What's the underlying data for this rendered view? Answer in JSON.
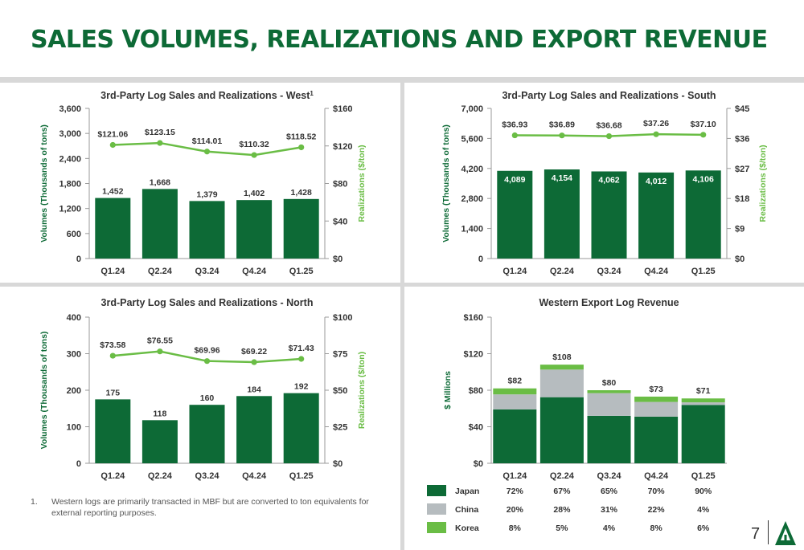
{
  "page": {
    "title": "SALES VOLUMES, REALIZATIONS AND EXPORT REVENUE",
    "footnote_number": "1.",
    "footnote_text": "Western logs are primarily transacted in MBF but are converted to ton equivalents for external reporting purposes.",
    "page_number": "7"
  },
  "colors": {
    "bar": "#0d6a36",
    "line": "#6abd45",
    "china": "#b6bcbf",
    "text_green": "#0d6a36",
    "text_dark": "#333333",
    "light_green": "#6abd45"
  },
  "chart_data": [
    {
      "type": "bar",
      "title": "3rd-Party Log Sales and Realizations - West",
      "title_sup": "1",
      "categories": [
        "Q1.24",
        "Q2.24",
        "Q3.24",
        "Q4.24",
        "Q1.25"
      ],
      "ylabel": "Volumes (Thousands of tons)",
      "y2label": "Realizations ($/ton)",
      "ylim": [
        0,
        3600
      ],
      "yticks": [
        "0",
        "600",
        "1,200",
        "1,800",
        "2,400",
        "3,000",
        "3,600"
      ],
      "y2lim": [
        0,
        160
      ],
      "y2ticks": [
        "$0",
        "$40",
        "$80",
        "$120",
        "$160"
      ],
      "bars": [
        1452,
        1668,
        1379,
        1402,
        1428
      ],
      "bar_labels": [
        "1,452",
        "1,668",
        "1,379",
        "1,402",
        "1,428"
      ],
      "line": [
        121.06,
        123.15,
        114.01,
        110.32,
        118.52
      ],
      "line_labels": [
        "$121.06",
        "$123.15",
        "$114.01",
        "$110.32",
        "$118.52"
      ]
    },
    {
      "type": "bar",
      "title": "3rd-Party Log Sales and Realizations - South",
      "categories": [
        "Q1.24",
        "Q2.24",
        "Q3.24",
        "Q4.24",
        "Q1.25"
      ],
      "ylabel": "Volumes (Thousands of tons)",
      "y2label": "Realizations ($/ton)",
      "ylim": [
        0,
        7000
      ],
      "yticks": [
        "0",
        "1,400",
        "2,800",
        "4,200",
        "5,600",
        "7,000"
      ],
      "y2lim": [
        0,
        45
      ],
      "y2ticks": [
        "$0",
        "$9",
        "$18",
        "$27",
        "$36",
        "$45"
      ],
      "bars": [
        4089,
        4154,
        4062,
        4012,
        4106
      ],
      "bar_labels": [
        "4,089",
        "4,154",
        "4,062",
        "4,012",
        "4,106"
      ],
      "line": [
        36.93,
        36.89,
        36.68,
        37.26,
        37.1
      ],
      "line_labels": [
        "$36.93",
        "$36.89",
        "$36.68",
        "$37.26",
        "$37.10"
      ]
    },
    {
      "type": "bar",
      "title": "3rd-Party Log Sales and Realizations - North",
      "categories": [
        "Q1.24",
        "Q2.24",
        "Q3.24",
        "Q4.24",
        "Q1.25"
      ],
      "ylabel": "Volumes (Thousands of tons)",
      "y2label": "Realizations ($/ton)",
      "ylim": [
        0,
        400
      ],
      "yticks": [
        "0",
        "100",
        "200",
        "300",
        "400"
      ],
      "y2lim": [
        0,
        100
      ],
      "y2ticks": [
        "$0",
        "$25",
        "$50",
        "$75",
        "$100"
      ],
      "bars": [
        175,
        118,
        160,
        184,
        192
      ],
      "bar_labels": [
        "175",
        "118",
        "160",
        "184",
        "192"
      ],
      "line": [
        73.58,
        76.55,
        69.96,
        69.22,
        71.43
      ],
      "line_labels": [
        "$73.58",
        "$76.55",
        "$69.96",
        "$69.22",
        "$71.43"
      ]
    },
    {
      "type": "bar",
      "stacked": true,
      "title": "Western Export Log Revenue",
      "categories": [
        "Q1.24",
        "Q2.24",
        "Q3.24",
        "Q4.24",
        "Q1.25"
      ],
      "ylabel": "$ Millions",
      "ylim": [
        0,
        160
      ],
      "yticks": [
        "$0",
        "$40",
        "$80",
        "$120",
        "$160"
      ],
      "totals": [
        82,
        108,
        80,
        73,
        71
      ],
      "total_labels": [
        "$82",
        "$108",
        "$80",
        "$73",
        "$71"
      ],
      "series": [
        {
          "name": "Japan",
          "shares": [
            72,
            67,
            65,
            70,
            90
          ],
          "share_labels": [
            "72%",
            "67%",
            "65%",
            "70%",
            "90%"
          ]
        },
        {
          "name": "China",
          "shares": [
            20,
            28,
            31,
            22,
            4
          ],
          "share_labels": [
            "20%",
            "28%",
            "31%",
            "22%",
            "4%"
          ]
        },
        {
          "name": "Korea",
          "shares": [
            8,
            5,
            4,
            8,
            6
          ],
          "share_labels": [
            "8%",
            "5%",
            "4%",
            "8%",
            "6%"
          ]
        }
      ]
    }
  ]
}
